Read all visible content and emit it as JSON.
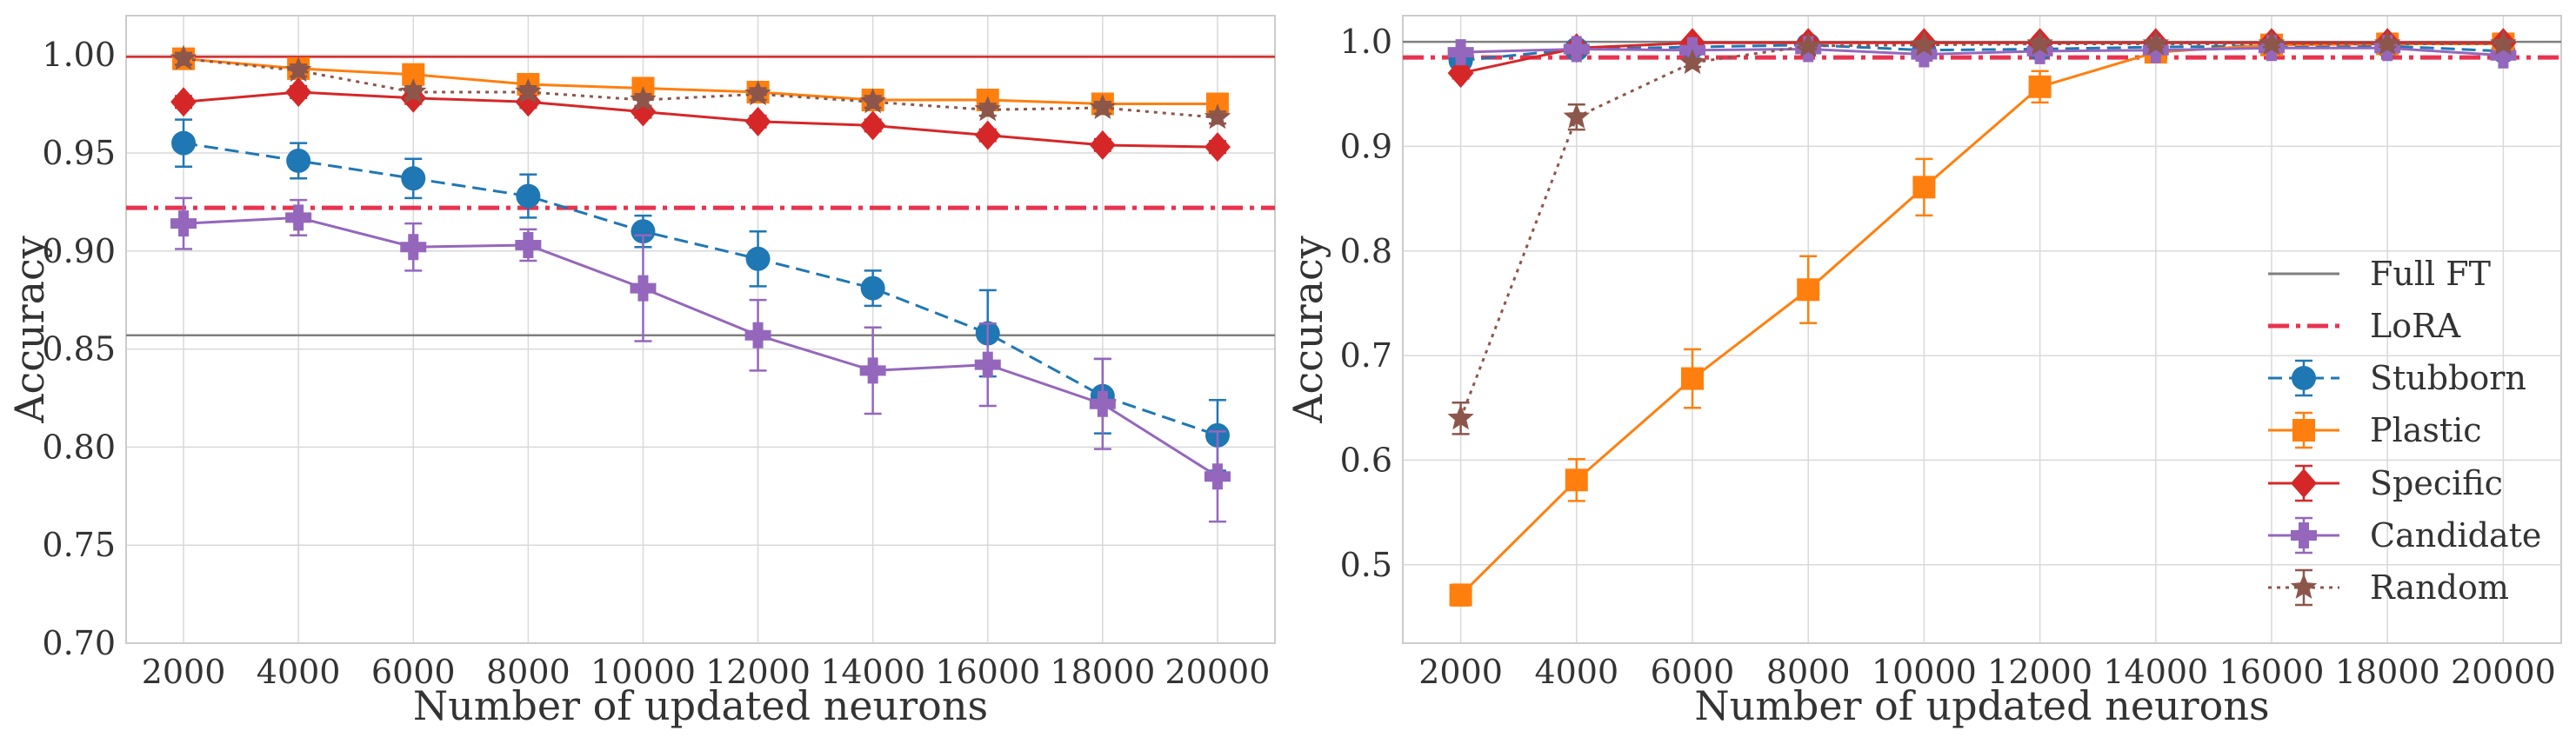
{
  "legend": {
    "position": "lower-right of right panel",
    "entries": [
      {
        "key": "full_ft",
        "label": "Full FT"
      },
      {
        "key": "lora",
        "label": "LoRA"
      },
      {
        "key": "stubborn",
        "label": "Stubborn"
      },
      {
        "key": "plastic",
        "label": "Plastic"
      },
      {
        "key": "specific",
        "label": "Specific"
      },
      {
        "key": "candidate",
        "label": "Candidate"
      },
      {
        "key": "random",
        "label": "Random"
      }
    ]
  },
  "styles": {
    "full_ft": {
      "color": "#7f7f7f",
      "dash": "solid",
      "marker": "none"
    },
    "lora": {
      "color": "#e8334f",
      "dash": "dashdot",
      "marker": "none"
    },
    "stubborn": {
      "color": "#1f77b4",
      "dash": "dashed",
      "marker": "circle"
    },
    "plastic": {
      "color": "#ff7f0e",
      "dash": "solid",
      "marker": "square"
    },
    "specific": {
      "color": "#d62728",
      "dash": "solid",
      "marker": "diamond"
    },
    "candidate": {
      "color": "#9467bd",
      "dash": "solid",
      "marker": "plus"
    },
    "random": {
      "color": "#8c564b",
      "dash": "dotted",
      "marker": "star"
    }
  },
  "chart_data": [
    {
      "type": "line",
      "xlabel": "Number of updated neurons",
      "ylabel": "Accuracy",
      "x": [
        2000,
        4000,
        6000,
        8000,
        10000,
        12000,
        14000,
        16000,
        18000,
        20000
      ],
      "x_ticks": [
        "2000",
        "4000",
        "6000",
        "8000",
        "10000",
        "12000",
        "14000",
        "16000",
        "18000",
        "20000"
      ],
      "xlim": [
        1000,
        21000
      ],
      "ylim": [
        0.7,
        1.02
      ],
      "y_ticks": [
        0.7,
        0.75,
        0.8,
        0.85,
        0.9,
        0.95,
        1.0
      ],
      "y_tick_labels": [
        "0.70",
        "0.75",
        "0.80",
        "0.85",
        "0.90",
        "0.95",
        "1.00"
      ],
      "grid": true,
      "hlines": [
        {
          "key": "full_ft",
          "y": 0.857
        },
        {
          "key": "lora",
          "y": 0.922
        },
        {
          "key": "specific",
          "y": 0.999
        }
      ],
      "series": [
        {
          "key": "stubborn",
          "values": [
            0.955,
            0.946,
            0.937,
            0.928,
            0.91,
            0.896,
            0.881,
            0.858,
            0.826,
            0.806
          ],
          "errors": [
            0.012,
            0.009,
            0.01,
            0.011,
            0.008,
            0.014,
            0.009,
            0.022,
            0.019,
            0.018
          ]
        },
        {
          "key": "plastic",
          "values": [
            0.998,
            0.993,
            0.99,
            0.985,
            0.983,
            0.981,
            0.977,
            0.977,
            0.975,
            0.975
          ],
          "errors": [
            0.003,
            0.003,
            0.003,
            0.003,
            0.003,
            0.003,
            0.003,
            0.003,
            0.003,
            0.003
          ]
        },
        {
          "key": "specific",
          "values": [
            0.976,
            0.981,
            0.978,
            0.976,
            0.971,
            0.966,
            0.964,
            0.959,
            0.954,
            0.953
          ],
          "errors": [
            0.003,
            0.003,
            0.003,
            0.003,
            0.003,
            0.003,
            0.003,
            0.003,
            0.003,
            0.003
          ]
        },
        {
          "key": "candidate",
          "values": [
            0.914,
            0.917,
            0.902,
            0.903,
            0.881,
            0.857,
            0.839,
            0.842,
            0.822,
            0.785
          ],
          "errors": [
            0.013,
            0.009,
            0.012,
            0.008,
            0.027,
            0.018,
            0.022,
            0.021,
            0.023,
            0.023
          ]
        },
        {
          "key": "random",
          "values": [
            0.998,
            0.992,
            0.981,
            0.981,
            0.977,
            0.98,
            0.976,
            0.972,
            0.973,
            0.968
          ],
          "errors": [
            0.003,
            0.003,
            0.003,
            0.003,
            0.003,
            0.003,
            0.003,
            0.003,
            0.003,
            0.003
          ]
        }
      ]
    },
    {
      "type": "line",
      "xlabel": "Number of updated neurons",
      "ylabel": "Accuracy",
      "x": [
        2000,
        4000,
        6000,
        8000,
        10000,
        12000,
        14000,
        16000,
        18000,
        20000
      ],
      "x_ticks": [
        "2000",
        "4000",
        "6000",
        "8000",
        "10000",
        "12000",
        "14000",
        "16000",
        "18000",
        "20000"
      ],
      "xlim": [
        1000,
        21000
      ],
      "ylim": [
        0.425,
        1.025
      ],
      "y_ticks": [
        0.5,
        0.6,
        0.7,
        0.8,
        0.9,
        1.0
      ],
      "y_tick_labels": [
        "0.5",
        "0.6",
        "0.7",
        "0.8",
        "0.9",
        "1.0"
      ],
      "grid": true,
      "hlines": [
        {
          "key": "full_ft",
          "y": 1.0
        },
        {
          "key": "lora",
          "y": 0.985
        }
      ],
      "series": [
        {
          "key": "stubborn",
          "values": [
            0.982,
            0.993,
            0.995,
            0.997,
            0.992,
            0.993,
            0.995,
            0.996,
            0.996,
            0.991
          ],
          "errors": [
            0.003,
            0.003,
            0.003,
            0.003,
            0.003,
            0.003,
            0.003,
            0.003,
            0.003,
            0.003
          ]
        },
        {
          "key": "plastic",
          "values": [
            0.471,
            0.581,
            0.678,
            0.763,
            0.861,
            0.957,
            0.99,
            0.997,
            0.998,
            0.998
          ],
          "errors": [
            0.01,
            0.02,
            0.028,
            0.032,
            0.027,
            0.015,
            0.005,
            0.003,
            0.003,
            0.003
          ]
        },
        {
          "key": "specific",
          "values": [
            0.97,
            0.994,
            0.999,
            0.999,
            0.999,
            0.999,
            0.999,
            0.999,
            0.999,
            0.999
          ],
          "errors": [
            0.005,
            0.003,
            0.003,
            0.003,
            0.003,
            0.003,
            0.003,
            0.003,
            0.003,
            0.003
          ]
        },
        {
          "key": "candidate",
          "values": [
            0.99,
            0.993,
            0.992,
            0.993,
            0.988,
            0.991,
            0.992,
            0.994,
            0.994,
            0.987
          ],
          "errors": [
            0.003,
            0.003,
            0.003,
            0.003,
            0.006,
            0.003,
            0.003,
            0.003,
            0.003,
            0.003
          ]
        },
        {
          "key": "random",
          "values": [
            0.64,
            0.928,
            0.98,
            0.996,
            0.997,
            0.998,
            0.998,
            0.998,
            0.998,
            0.998
          ],
          "errors": [
            0.015,
            0.012,
            0.004,
            0.003,
            0.003,
            0.003,
            0.003,
            0.003,
            0.003,
            0.003
          ]
        }
      ]
    }
  ]
}
